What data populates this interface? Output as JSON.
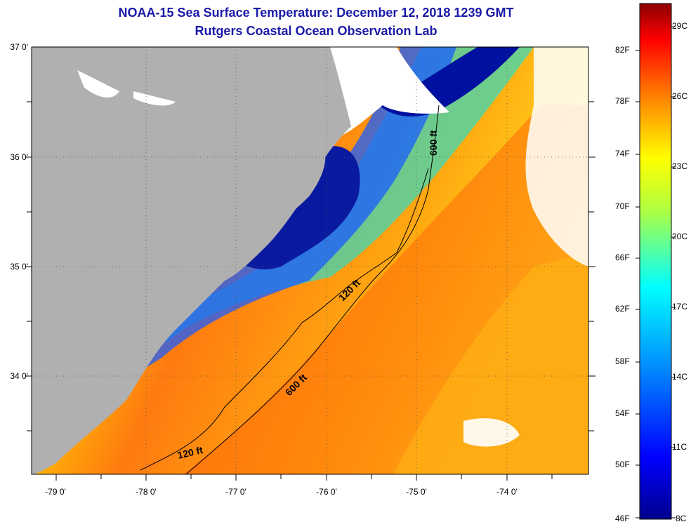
{
  "title": {
    "line1": "NOAA-15 Sea Surface Temperature:  December 12, 2018 1239 GMT",
    "line2": "Rutgers Coastal Ocean Observation Lab"
  },
  "map": {
    "lat_labels": [
      "37 0'",
      "36 0'",
      "35 0'",
      "34 0'"
    ],
    "lon_labels": [
      "-79 0'",
      "-78 0'",
      "-77 0'",
      "-76 0'",
      "-75 0'",
      "-74 0'"
    ],
    "contours": [
      "600 ft",
      "120 ft",
      "600 ft",
      "120 ft"
    ]
  },
  "colorbar": {
    "fahrenheit": [
      "82F",
      "78F",
      "74F",
      "70F",
      "66F",
      "62F",
      "58F",
      "54F",
      "50F",
      "46F"
    ],
    "celsius": [
      "29C",
      "26C",
      "23C",
      "20C",
      "17C",
      "14C",
      "11C",
      "8C"
    ]
  },
  "colors": {
    "title": "#1a1aa8",
    "land": "#b0b0b0",
    "cold": "#00008c",
    "warm": "#e8500a"
  }
}
